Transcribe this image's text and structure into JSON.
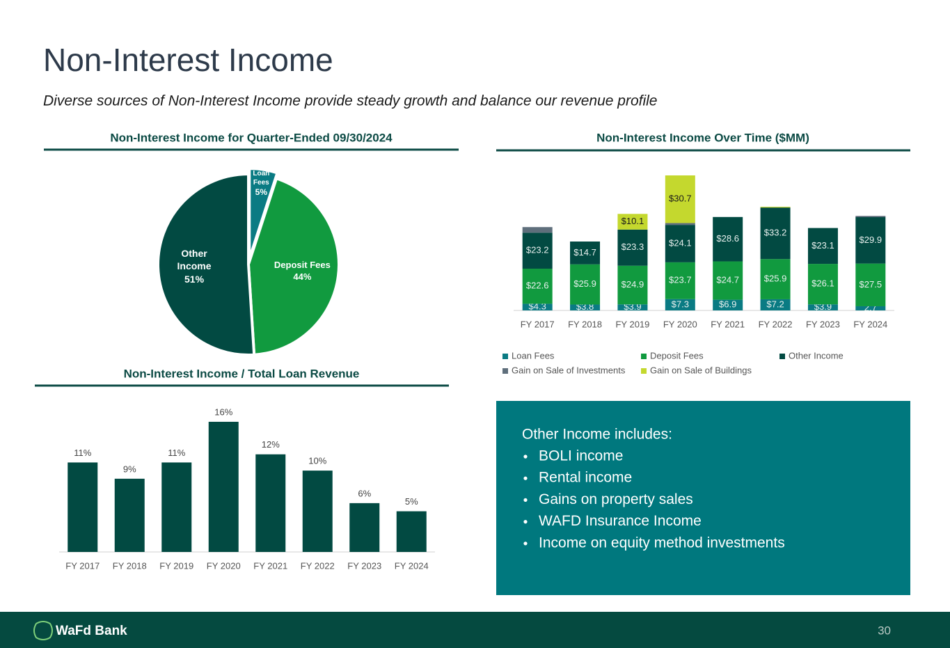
{
  "header": {
    "title": "Non-Interest Income",
    "subtitle": "Diverse sources of Non-Interest Income provide steady growth and balance our revenue profile"
  },
  "chart_data": [
    {
      "type": "pie",
      "title": "Non-Interest Income for Quarter-Ended 09/30/2024",
      "categories": [
        "Loan Fees",
        "Deposit Fees",
        "Other Income"
      ],
      "values": [
        5,
        44,
        51
      ],
      "value_labels": [
        "5%",
        "44%",
        "51%"
      ],
      "colors": [
        "#0a7b83",
        "#119a3f",
        "#024a42"
      ]
    },
    {
      "type": "stacked_bar",
      "title": "Non-Interest Income Over Time ($MM)",
      "categories": [
        "FY 2017",
        "FY 2018",
        "FY 2019",
        "FY 2020",
        "FY 2021",
        "FY 2022",
        "FY 2023",
        "FY 2024"
      ],
      "series": [
        {
          "name": "Loan Fees",
          "color": "#0a7b83",
          "values": [
            4.3,
            3.8,
            3.9,
            7.3,
            6.9,
            7.2,
            3.9,
            2.7
          ],
          "value_labels": [
            "$4.3",
            "$3.8",
            "$3.9",
            "$7.3",
            "$6.9",
            "$7.2",
            "$3.9",
            "2.7"
          ]
        },
        {
          "name": "Deposit Fees",
          "color": "#119a3f",
          "values": [
            22.6,
            25.9,
            24.9,
            23.7,
            24.7,
            25.9,
            26.1,
            27.5
          ],
          "value_labels": [
            "$22.6",
            "$25.9",
            "$24.9",
            "$23.7",
            "$24.7",
            "$25.9",
            "$26.1",
            "$27.5"
          ]
        },
        {
          "name": "Other Income",
          "color": "#024a42",
          "values": [
            23.2,
            14.7,
            23.3,
            24.1,
            28.6,
            33.2,
            23.1,
            29.9
          ],
          "value_labels": [
            "$23.2",
            "$14.7",
            "$23.3",
            "$24.1",
            "$28.6",
            "$33.2",
            "$23.1",
            "$29.9"
          ]
        },
        {
          "name": "Gain on Sale of Investments",
          "color": "#5f6f7c",
          "values": [
            3.6,
            0,
            0,
            1.2,
            0,
            0,
            0,
            0.8
          ]
        },
        {
          "name": "Gain on Sale of Buildings",
          "color": "#c4d82e",
          "values": [
            0,
            0,
            10.1,
            30.7,
            0,
            0.5,
            0,
            0
          ],
          "value_labels": [
            null,
            null,
            "$10.1",
            "$30.7",
            null,
            null,
            null,
            null
          ]
        }
      ],
      "legend": "bottom"
    },
    {
      "type": "bar",
      "title": "Non-Interest Income / Total Loan Revenue",
      "categories": [
        "FY 2017",
        "FY 2018",
        "FY 2019",
        "FY 2020",
        "FY 2021",
        "FY 2022",
        "FY 2023",
        "FY 2024"
      ],
      "values": [
        11,
        9,
        11,
        16,
        12,
        10,
        6,
        5
      ],
      "value_labels": [
        "11%",
        "9%",
        "11%",
        "16%",
        "12%",
        "10%",
        "6%",
        "5%"
      ],
      "color": "#024a42"
    }
  ],
  "note_box": {
    "heading": "Other Income includes:",
    "items": [
      "BOLI income",
      "Rental income",
      "Gains on property sales",
      "WAFD Insurance Income",
      "Income on equity method investments"
    ]
  },
  "footer": {
    "logo": "WaFd Bank",
    "page_number": "30"
  }
}
